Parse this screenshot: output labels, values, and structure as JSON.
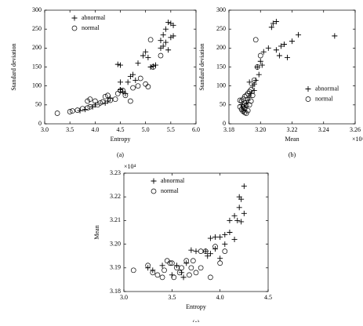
{
  "chart_data": [
    {
      "type": "scatter",
      "caption": "(a)",
      "xlabel": "Entropy",
      "ylabel": "Standard deviation",
      "legend": "upper left",
      "xlim": [
        3,
        6
      ],
      "ylim": [
        0,
        300
      ],
      "xticks": [
        {
          "value": 3,
          "label": "3.0"
        },
        3.5,
        {
          "value": 4,
          "label": "4.0"
        },
        4.5,
        {
          "value": 5,
          "label": "5.0"
        },
        5.5,
        {
          "value": 6,
          "label": "6.0"
        }
      ],
      "yticks": [
        0,
        50,
        100,
        150,
        200,
        250,
        300
      ],
      "series": [
        {
          "name": "abnormal",
          "marker": "plus",
          "color": "#000000",
          "x": [
            5.45,
            5.5,
            5.55,
            5.4,
            5.35,
            5.55,
            5.5,
            5.3,
            5.4,
            5.35,
            5.3,
            5.45,
            5.0,
            4.95,
            5.05,
            4.85,
            4.45,
            4.5,
            4.75,
            4.8,
            4.7,
            4.65,
            4.5,
            5.1,
            5.15,
            5.2,
            4.5,
            4.55,
            4.6,
            4.3,
            4.25,
            4.2,
            4.0,
            3.95,
            3.8,
            3.7
          ],
          "values": [
            268,
            265,
            260,
            250,
            235,
            232,
            228,
            220,
            215,
            205,
            200,
            195,
            190,
            180,
            175,
            160,
            157,
            155,
            130,
            115,
            125,
            110,
            110,
            150,
            152,
            155,
            90,
            85,
            80,
            68,
            60,
            55,
            50,
            45,
            38,
            35
          ]
        },
        {
          "name": "normal",
          "marker": "circle",
          "color": "#000000",
          "x": [
            3.25,
            3.5,
            3.55,
            3.65,
            3.75,
            3.85,
            3.9,
            4.0,
            4.05,
            4.1,
            4.15,
            4.2,
            4.25,
            4.3,
            4.4,
            3.9,
            3.85,
            4.45,
            4.5,
            4.55,
            4.6,
            4.7,
            4.75,
            4.85,
            4.9,
            5.0,
            5.05,
            5.1,
            5.3,
            5.15
          ],
          "values": [
            28,
            32,
            34,
            36,
            40,
            42,
            45,
            60,
            50,
            55,
            58,
            72,
            75,
            62,
            65,
            65,
            60,
            80,
            88,
            88,
            75,
            60,
            95,
            100,
            120,
            105,
            98,
            222,
            180,
            150
          ]
        }
      ]
    },
    {
      "type": "scatter",
      "caption": "(b)",
      "xlabel": "Mean",
      "ylabel": "Standard deviation",
      "x_multiplier": "×10⁴",
      "legend": "center right",
      "xlim": [
        3.18,
        3.26
      ],
      "ylim": [
        0,
        300
      ],
      "xticks": [
        3.18,
        {
          "value": 3.2,
          "label": "3.20"
        },
        3.22,
        3.24,
        3.26
      ],
      "yticks": [
        0,
        50,
        100,
        150,
        200,
        250,
        300
      ],
      "series": [
        {
          "name": "abnormal",
          "marker": "plus",
          "color": "#000000",
          "x": [
            3.208,
            3.21,
            3.207,
            3.224,
            3.247,
            3.22,
            3.215,
            3.213,
            3.21,
            3.212,
            3.217,
            3.205,
            3.202,
            3.2,
            3.201,
            3.198,
            3.199,
            3.197,
            3.196,
            3.195,
            3.196,
            3.194,
            3.193,
            3.192,
            3.191,
            3.19,
            3.189,
            3.188,
            3.193
          ],
          "values": [
            265,
            270,
            255,
            235,
            232,
            218,
            210,
            205,
            195,
            180,
            175,
            200,
            190,
            165,
            155,
            150,
            130,
            115,
            105,
            100,
            88,
            80,
            70,
            62,
            55,
            45,
            35,
            50,
            110
          ]
        },
        {
          "name": "normal",
          "marker": "circle",
          "color": "#000000",
          "x": [
            3.197,
            3.2,
            3.198,
            3.196,
            3.194,
            3.193,
            3.192,
            3.191,
            3.19,
            3.189,
            3.188,
            3.187,
            3.19,
            3.191,
            3.189,
            3.19,
            3.188,
            3.189,
            3.19,
            3.191,
            3.192,
            3.187,
            3.195,
            3.194,
            3.193
          ],
          "values": [
            222,
            180,
            150,
            115,
            90,
            85,
            80,
            75,
            72,
            65,
            60,
            62,
            55,
            48,
            45,
            40,
            38,
            33,
            30,
            28,
            35,
            45,
            75,
            60,
            50
          ]
        }
      ]
    },
    {
      "type": "scatter",
      "caption": "(c)",
      "xlabel": "Entropy",
      "ylabel": "Mean",
      "y_multiplier": "×10⁴",
      "legend": "upper left",
      "xlim": [
        3,
        4.5
      ],
      "ylim": [
        3.18,
        3.23
      ],
      "xticks": [
        {
          "value": 3,
          "label": "3.0"
        },
        3.5,
        {
          "value": 4,
          "label": "4.0"
        },
        4.5
      ],
      "yticks": [
        3.18,
        3.19,
        {
          "value": 3.2,
          "label": "3.20"
        },
        3.21,
        3.22,
        3.23
      ],
      "series": [
        {
          "name": "abnormal",
          "marker": "plus",
          "color": "#000000",
          "x": [
            4.25,
            4.2,
            4.22,
            4.2,
            4.25,
            4.15,
            4.18,
            4.22,
            4.1,
            4.1,
            4.05,
            4.0,
            3.95,
            3.9,
            4.15,
            4.05,
            3.95,
            3.85,
            3.75,
            3.7,
            3.9,
            3.87,
            4.0,
            3.6,
            3.62,
            3.5,
            3.3,
            3.25,
            3.4,
            3.55,
            3.65
          ],
          "values": [
            3.2245,
            3.22,
            3.219,
            3.2155,
            3.213,
            3.212,
            3.21,
            3.2095,
            3.21,
            3.205,
            3.204,
            3.203,
            3.203,
            3.2025,
            3.202,
            3.2,
            3.198,
            3.197,
            3.197,
            3.1975,
            3.196,
            3.195,
            3.194,
            3.188,
            3.186,
            3.187,
            3.189,
            3.19,
            3.191,
            3.191,
            3.192
          ]
        },
        {
          "name": "normal",
          "marker": "circle",
          "color": "#000000",
          "x": [
            3.1,
            3.25,
            3.3,
            3.35,
            3.4,
            3.45,
            3.5,
            3.55,
            3.6,
            3.65,
            3.7,
            3.75,
            3.8,
            3.85,
            3.9,
            3.95,
            4.05,
            4.0,
            3.52,
            3.42,
            3.68,
            3.72,
            3.8,
            3.58,
            3.48
          ],
          "values": [
            3.189,
            3.191,
            3.188,
            3.187,
            3.186,
            3.193,
            3.192,
            3.19,
            3.19,
            3.193,
            3.19,
            3.188,
            3.19,
            3.197,
            3.186,
            3.199,
            3.197,
            3.192,
            3.186,
            3.189,
            3.187,
            3.193,
            3.197,
            3.188,
            3.192
          ]
        }
      ]
    }
  ]
}
